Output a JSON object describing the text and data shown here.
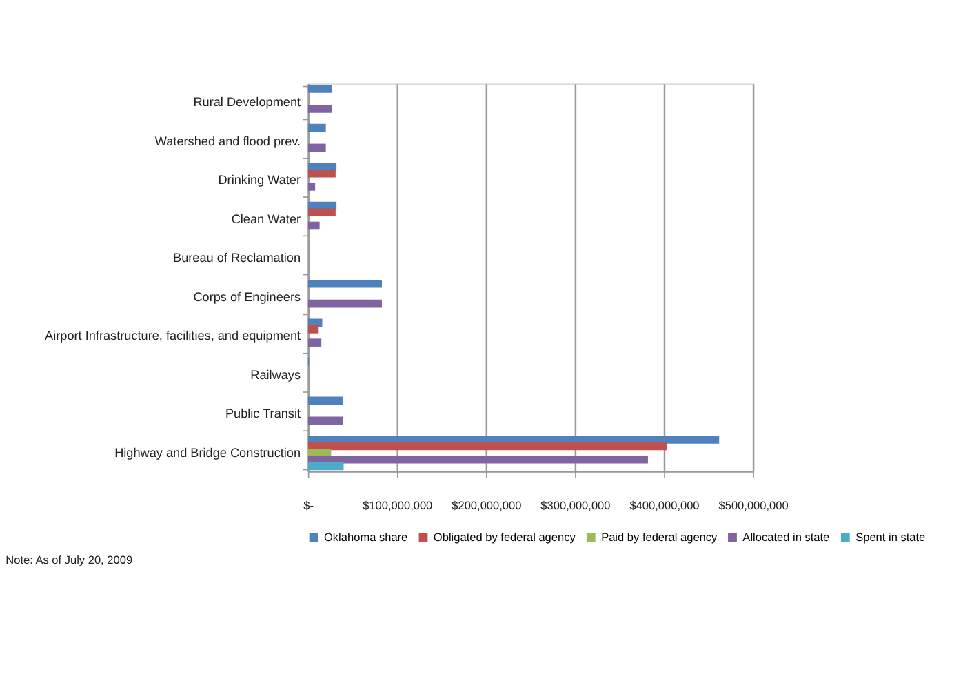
{
  "chart_data": {
    "type": "bar",
    "orientation": "horizontal",
    "categories": [
      "Rural Development",
      "Watershed and flood prev.",
      "Drinking Water",
      "Clean Water",
      "Bureau of Reclamation",
      "Corps of Engineers",
      "Airport Infrastructure, facilities, and equipment",
      "Railways",
      "Public Transit",
      "Highway and Bridge Construction"
    ],
    "series": [
      {
        "name": "Oklahoma share",
        "color": "#4f81bd",
        "values": [
          27000000,
          20000000,
          32000000,
          32000000,
          null,
          83000000,
          16000000,
          1000000,
          39000000,
          462000000
        ]
      },
      {
        "name": "Obligated by federal agency",
        "color": "#c0504d",
        "values": [
          null,
          null,
          31000000,
          31000000,
          null,
          null,
          12000000,
          null,
          null,
          403000000
        ]
      },
      {
        "name": "Paid by federal agency",
        "color": "#9bbb59",
        "values": [
          null,
          null,
          null,
          null,
          null,
          null,
          null,
          null,
          null,
          26000000
        ]
      },
      {
        "name": "Allocated in state",
        "color": "#8064a2",
        "values": [
          27000000,
          20000000,
          8000000,
          13000000,
          null,
          83000000,
          15000000,
          null,
          39000000,
          382000000
        ]
      },
      {
        "name": "Spent in state",
        "color": "#4bacc6",
        "values": [
          null,
          null,
          null,
          null,
          null,
          null,
          null,
          null,
          null,
          40000000
        ]
      }
    ],
    "xlim": [
      0,
      500000000
    ],
    "xticks": [
      {
        "value": 0,
        "label": "$-"
      },
      {
        "value": 100000000,
        "label": "$100,000,000"
      },
      {
        "value": 200000000,
        "label": "$200,000,000"
      },
      {
        "value": 300000000,
        "label": "$300,000,000"
      },
      {
        "value": 400000000,
        "label": "$400,000,000"
      },
      {
        "value": 500000000,
        "label": "$500,000,000"
      }
    ],
    "grid": "x",
    "legend": "bottom",
    "annotations": [
      "Note:  As of July 20, 2009"
    ]
  }
}
